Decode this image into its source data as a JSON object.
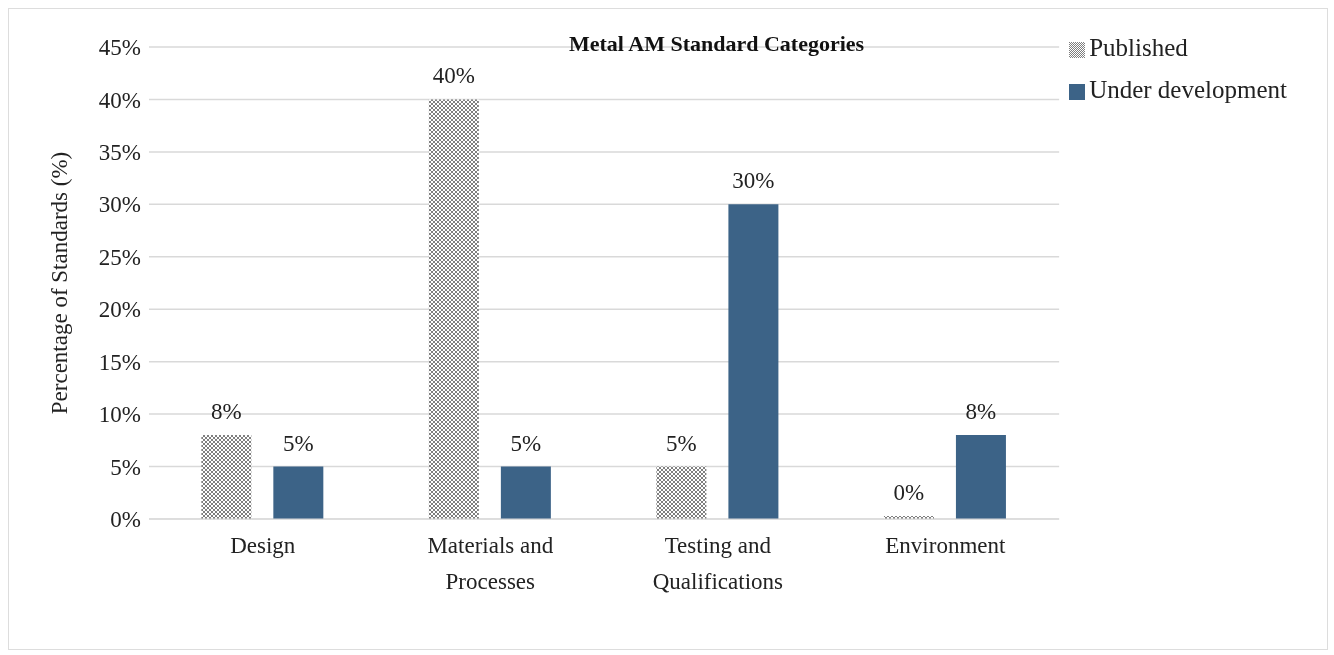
{
  "chart_data": {
    "type": "bar",
    "title": "Metal AM Standard Categories",
    "ylabel": "Percentage of Standards (%)",
    "categories": [
      "Design",
      "Materials and Processes",
      "Testing and Qualifications",
      "Environment"
    ],
    "series": [
      {
        "name": "Published",
        "color": "#7f7f7f",
        "values": [
          8,
          40,
          5,
          0
        ],
        "value_labels": [
          "8%",
          "40%",
          "5%",
          "0%"
        ]
      },
      {
        "name": "Under development",
        "color": "#3c6387",
        "values": [
          5,
          5,
          30,
          8
        ],
        "value_labels": [
          "5%",
          "5%",
          "30%",
          "8%"
        ]
      }
    ],
    "ylim": [
      0,
      45
    ],
    "yticks": [
      {
        "value": 0,
        "label": "0%"
      },
      {
        "value": 5,
        "label": "5%"
      },
      {
        "value": 10,
        "label": "10%"
      },
      {
        "value": 15,
        "label": "15%"
      },
      {
        "value": 20,
        "label": "20%"
      },
      {
        "value": 25,
        "label": "25%"
      },
      {
        "value": 30,
        "label": "30%"
      },
      {
        "value": 35,
        "label": "35%"
      },
      {
        "value": 40,
        "label": "40%"
      },
      {
        "value": 45,
        "label": "45%"
      }
    ],
    "grid": "y",
    "legend": "top right"
  }
}
